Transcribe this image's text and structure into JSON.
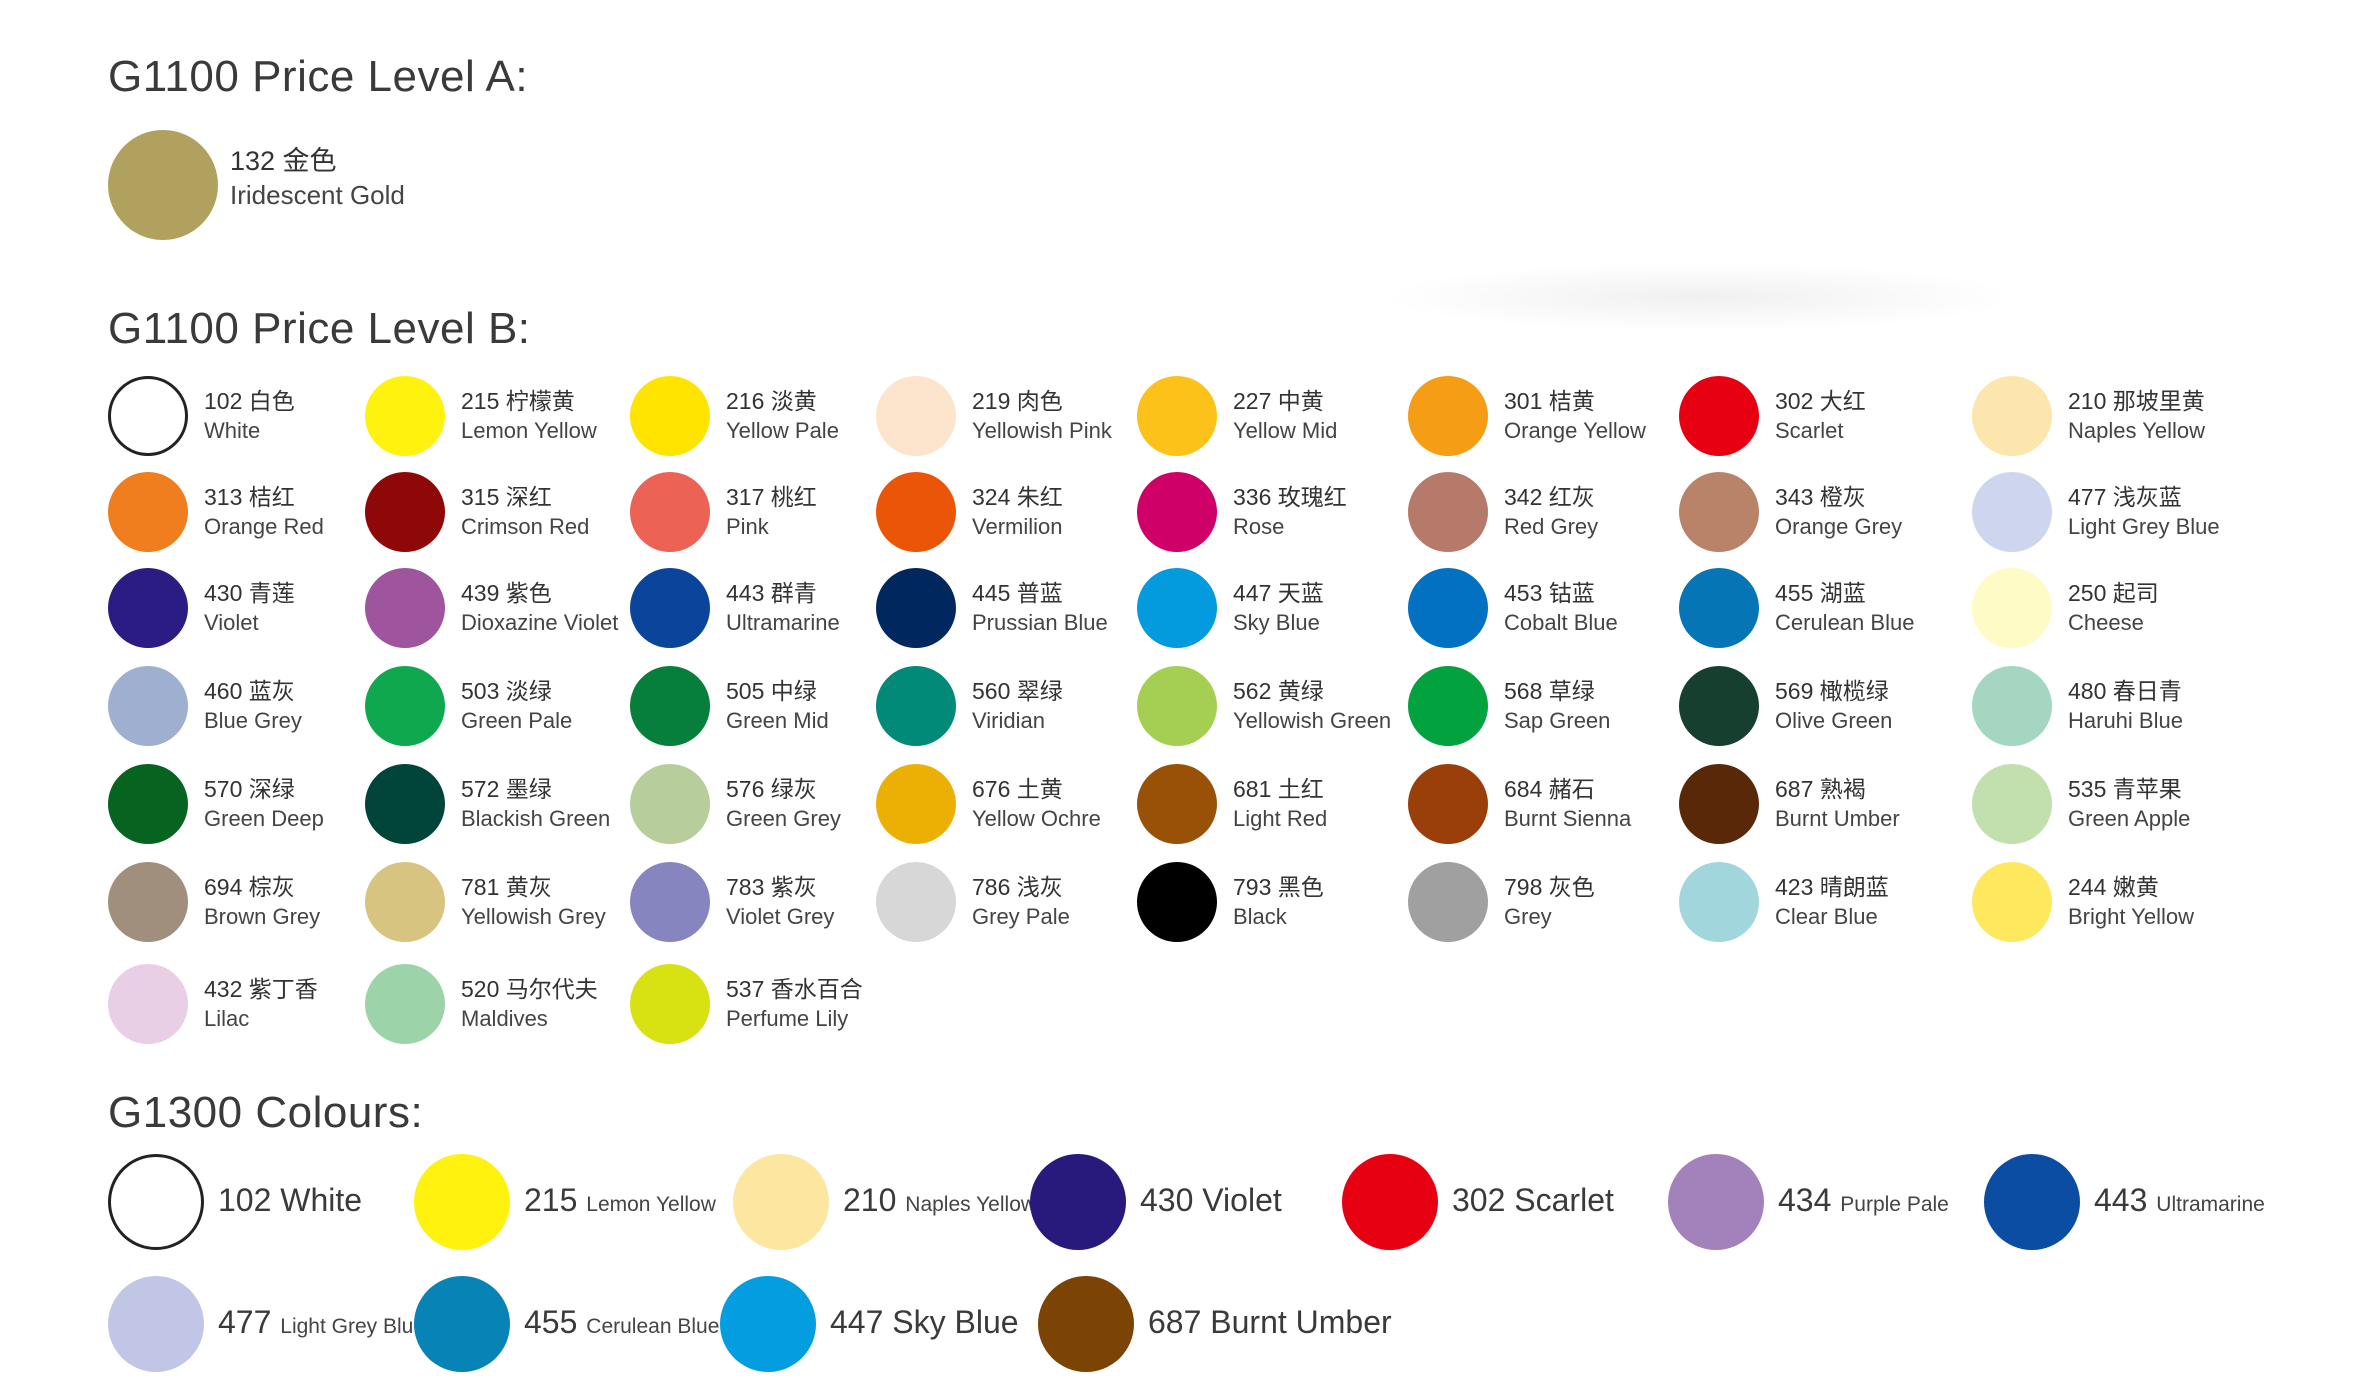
{
  "level_a": {
    "title": "G1100 Price Level A:",
    "item": {
      "code": "132 金色",
      "name": "Iridescent Gold",
      "color": "#b1a15f"
    }
  },
  "level_b": {
    "title": "G1100 Price Level B:",
    "rows": [
      [
        {
          "code": "102 白色",
          "name": "White",
          "color": "#ffffff",
          "outline": true
        },
        {
          "code": "215 柠檬黄",
          "name": "Lemon Yellow",
          "color": "#fff20f"
        },
        {
          "code": "216 淡黄",
          "name": "Yellow Pale",
          "color": "#ffe400"
        },
        {
          "code": "219 肉色",
          "name": "Yellowish Pink",
          "color": "#fde4cd"
        },
        {
          "code": "227 中黄",
          "name": "Yellow Mid",
          "color": "#fcc21a"
        },
        {
          "code": "301 桔黄",
          "name": "Orange Yellow",
          "color": "#f59d15"
        },
        {
          "code": "302 大红",
          "name": "Scarlet",
          "color": "#e60012"
        },
        {
          "code": "210 那坡里黄",
          "name": "Naples Yellow",
          "color": "#fde6ae"
        }
      ],
      [
        {
          "code": "313 桔红",
          "name": "Orange Red",
          "color": "#f07d1e"
        },
        {
          "code": "315 深红",
          "name": "Crimson Red",
          "color": "#8f0808"
        },
        {
          "code": "317 桃红",
          "name": "Pink",
          "color": "#ec6356"
        },
        {
          "code": "324 朱红",
          "name": "Vermilion",
          "color": "#ea5507"
        },
        {
          "code": "336 玫瑰红",
          "name": "Rose",
          "color": "#cf0068"
        },
        {
          "code": "342 红灰",
          "name": "Red Grey",
          "color": "#b57a6a"
        },
        {
          "code": "343 橙灰",
          "name": "Orange Grey",
          "color": "#b98369"
        },
        {
          "code": "477 浅灰蓝",
          "name": "Light Grey Blue",
          "color": "#cdd6ee"
        }
      ],
      [
        {
          "code": "430 青莲",
          "name": "Violet",
          "color": "#2a1c82"
        },
        {
          "code": "439 紫色",
          "name": "Dioxazine Violet",
          "color": "#9e559e"
        },
        {
          "code": "443 群青",
          "name": "Ultramarine",
          "color": "#0b459b"
        },
        {
          "code": "445 普蓝",
          "name": "Prussian Blue",
          "color": "#00285e"
        },
        {
          "code": "447 天蓝",
          "name": "Sky Blue",
          "color": "#049ade"
        },
        {
          "code": "453 钴蓝",
          "name": "Cobalt Blue",
          "color": "#0271c2"
        },
        {
          "code": "455 湖蓝",
          "name": "Cerulean Blue",
          "color": "#0675b6"
        },
        {
          "code": "250 起司",
          "name": "Cheese",
          "color": "#fffbc6"
        }
      ],
      [
        {
          "code": "460 蓝灰",
          "name": "Blue Grey",
          "color": "#9eafd0"
        },
        {
          "code": "503 淡绿",
          "name": "Green Pale",
          "color": "#10a84f"
        },
        {
          "code": "505 中绿",
          "name": "Green Mid",
          "color": "#057f39"
        },
        {
          "code": "560 翠绿",
          "name": "Viridian",
          "color": "#028a78"
        },
        {
          "code": "562 黄绿",
          "name": "Yellowish Green",
          "color": "#a5cf52"
        },
        {
          "code": "568 草绿",
          "name": "Sap Green",
          "color": "#02a23f"
        },
        {
          "code": "569 橄榄绿",
          "name": "Olive Green",
          "color": "#173f30"
        },
        {
          "code": "480 春日青",
          "name": "Haruhi Blue",
          "color": "#a4d6c1"
        }
      ],
      [
        {
          "code": "570 深绿",
          "name": "Green Deep",
          "color": "#066320"
        },
        {
          "code": "572 墨绿",
          "name": "Blackish Green",
          "color": "#00443a"
        },
        {
          "code": "576 绿灰",
          "name": "Green Grey",
          "color": "#b7cd9b"
        },
        {
          "code": "676 土黄",
          "name": "Yellow Ochre",
          "color": "#ecb005"
        },
        {
          "code": "681 土红",
          "name": "Light Red",
          "color": "#985107"
        },
        {
          "code": "684 赭石",
          "name": "Burnt Sienna",
          "color": "#9a3e0a"
        },
        {
          "code": "687 熟褐",
          "name": "Burnt Umber",
          "color": "#592809"
        },
        {
          "code": "535 青苹果",
          "name": "Green Apple",
          "color": "#c1e0ae"
        }
      ],
      [
        {
          "code": "694 棕灰",
          "name": "Brown Grey",
          "color": "#a08f7d"
        },
        {
          "code": "781 黄灰",
          "name": "Yellowish Grey",
          "color": "#d7c480"
        },
        {
          "code": "783 紫灰",
          "name": "Violet Grey",
          "color": "#8785c0"
        },
        {
          "code": "786 浅灰",
          "name": "Grey Pale",
          "color": "#d7d7d7"
        },
        {
          "code": "793 黑色",
          "name": "Black",
          "color": "#000000"
        },
        {
          "code": "798 灰色",
          "name": "Grey",
          "color": "#a0a0a0"
        },
        {
          "code": "423 晴朗蓝",
          "name": "Clear Blue",
          "color": "#a1d6dc"
        },
        {
          "code": "244 嫩黄",
          "name": "Bright Yellow",
          "color": "#fee95e"
        }
      ],
      [
        {
          "code": "432 紫丁香",
          "name": "Lilac",
          "color": "#e9cfe5"
        },
        {
          "code": "520 马尔代夫",
          "name": "Maldives",
          "color": "#9dd3a9"
        },
        {
          "code": "537 香水百合",
          "name": "Perfume Lily",
          "color": "#d8e112"
        }
      ]
    ]
  },
  "g1300": {
    "title": "G1300 Colours:",
    "rows": [
      [
        {
          "num": "102",
          "name": "White",
          "small": false,
          "color": "#ffffff",
          "outline": true
        },
        {
          "num": "215",
          "name": "Lemon Yellow",
          "small": true,
          "color": "#fff20f"
        },
        {
          "num": "210",
          "name": "Naples Yellow",
          "small": true,
          "color": "#fde6a0"
        },
        {
          "num": "430",
          "name": "Violet",
          "small": false,
          "color": "#28197c"
        },
        {
          "num": "302",
          "name": "Scarlet",
          "small": false,
          "color": "#e60012"
        },
        {
          "num": "434",
          "name": "Purple Pale",
          "small": true,
          "color": "#a381bb"
        },
        {
          "num": "443",
          "name": "Ultramarine",
          "small": true,
          "color": "#0b4da2"
        }
      ],
      [
        {
          "num": "477",
          "name": "Light Grey Blue",
          "small": true,
          "color": "#c1c6e6"
        },
        {
          "num": "455",
          "name": "Cerulean Blue",
          "small": true,
          "color": "#0883b6"
        },
        {
          "num": "447",
          "name": "Sky Blue",
          "small": false,
          "color": "#049ee0"
        },
        {
          "num": "687",
          "name": "Burnt Umber",
          "small": false,
          "color": "#7b4304"
        }
      ]
    ]
  }
}
